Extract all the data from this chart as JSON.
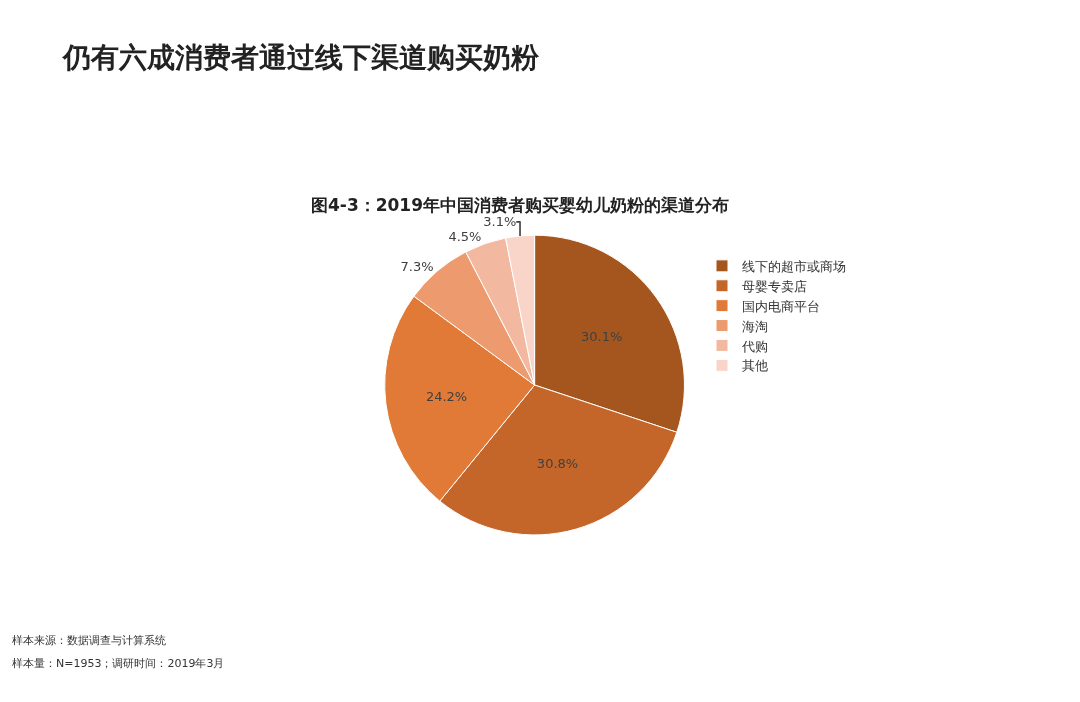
{
  "chart_data": {
    "type": "pie",
    "title": "仍有六成消费者通过线下渠道购买奶粉",
    "subtitle": "图4-3：2019年中国消费者购买婴幼儿奶粉的渠道分布",
    "categories": [
      "线下的超市或商场",
      "母婴专卖店",
      "国内电商平台",
      "海淘",
      "代购",
      "其他"
    ],
    "values": [
      30.1,
      30.8,
      24.2,
      7.3,
      4.5,
      3.1
    ],
    "value_labels": [
      "30.1%",
      "30.8%",
      "24.2%",
      "7.3%",
      "4.5%",
      "3.1%"
    ],
    "colors": [
      "#a5561f",
      "#c4652a",
      "#e07a36",
      "#ec9a6e",
      "#f3b8a0",
      "#f8d5c8"
    ],
    "legend": "right",
    "annotations": [
      "样本来源：数据调查与计算系统",
      "样本量：N=1953；调研时间：2019年3月"
    ]
  }
}
